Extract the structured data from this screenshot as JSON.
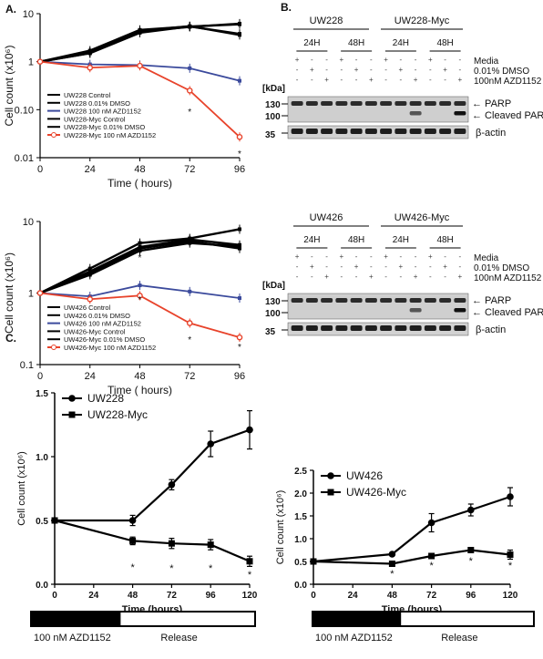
{
  "panels": {
    "a": "A.",
    "b": "B.",
    "c": "C."
  },
  "chart_data": [
    {
      "id": "a_top",
      "type": "line",
      "log_y": true,
      "ylabel": "Cell count (x10⁶)",
      "xlabel": "Time ( hours)",
      "x": [
        0,
        24,
        48,
        72,
        96
      ],
      "xlim": [
        0,
        96
      ],
      "ylim": [
        0.01,
        10
      ],
      "yticks": [
        "0.01",
        "0.10",
        "1",
        "10"
      ],
      "series": [
        {
          "name": "UW228 Control",
          "color": "#000000",
          "values": [
            1,
            1.5,
            4.3,
            5.3,
            6.2
          ]
        },
        {
          "name": "UW228 0.01% DMSO",
          "color": "#000000",
          "values": [
            1,
            1.7,
            4.6,
            5.4,
            3.8
          ]
        },
        {
          "name": "UW228 100 nM AZD1152",
          "color": "#3b4a9c",
          "values": [
            1,
            0.88,
            0.85,
            0.73,
            0.4
          ]
        },
        {
          "name": "UW228-Myc Control",
          "color": "#000000",
          "values": [
            1,
            1.5,
            4.0,
            5.4,
            6.0
          ]
        },
        {
          "name": "UW228-Myc 0.01% DMSO",
          "color": "#000000",
          "values": [
            1,
            1.6,
            4.4,
            5.5,
            3.6
          ]
        },
        {
          "name": "UW228-Myc 100 nM AZD1152",
          "color": "#e8432b",
          "values": [
            1,
            0.75,
            0.82,
            0.25,
            0.027
          ]
        }
      ],
      "annotations": [
        "*",
        "*"
      ]
    },
    {
      "id": "a_bottom",
      "type": "line",
      "log_y": true,
      "ylabel": "Cell count (x10⁶)",
      "xlabel": "Time ( hours)",
      "x": [
        0,
        24,
        48,
        72,
        96
      ],
      "xlim": [
        0,
        96
      ],
      "ylim": [
        0.1,
        10
      ],
      "yticks": [
        "0.1",
        "1",
        "10"
      ],
      "series": [
        {
          "name": "UW426 Control",
          "color": "#000000",
          "values": [
            1,
            2.2,
            5.0,
            5.8,
            7.8
          ]
        },
        {
          "name": "UW426 0.01% DMSO",
          "color": "#000000",
          "values": [
            1,
            2.0,
            4.4,
            5.6,
            4.7
          ]
        },
        {
          "name": "UW426 100 nM AZD1152",
          "color": "#3b4a9c",
          "values": [
            1,
            0.9,
            1.28,
            1.05,
            0.85
          ]
        },
        {
          "name": "UW426-Myc Control",
          "color": "#000000",
          "values": [
            1,
            1.9,
            4.2,
            5.3,
            4.2
          ]
        },
        {
          "name": "UW426-Myc 0.01% DMSO",
          "color": "#000000",
          "values": [
            1,
            1.8,
            3.9,
            5.0,
            4.5
          ]
        },
        {
          "name": "UW426-Myc 100 nM AZD1152",
          "color": "#e8432b",
          "values": [
            1,
            0.82,
            0.92,
            0.38,
            0.24
          ]
        }
      ],
      "annotations": [
        "*",
        "*",
        "*",
        "*"
      ]
    },
    {
      "id": "c_left",
      "type": "line",
      "ylabel": "Cell count (x10⁶)",
      "xlabel": "Time (hours)",
      "x": [
        0,
        48,
        72,
        96,
        120
      ],
      "xticks": [
        "0",
        "24",
        "48",
        "72",
        "96",
        "120"
      ],
      "yticks": [
        "0.0",
        "0.5",
        "1.0",
        "1.5"
      ],
      "ylim": [
        0,
        1.5
      ],
      "series": [
        {
          "name": "UW228",
          "marker": "circle",
          "values": [
            0.5,
            0.5,
            0.78,
            1.1,
            1.21
          ],
          "errors": [
            0,
            0.04,
            0.04,
            0.1,
            0.15
          ]
        },
        {
          "name": "UW228-Myc",
          "marker": "square",
          "values": [
            0.5,
            0.34,
            0.32,
            0.31,
            0.18
          ],
          "errors": [
            0,
            0.03,
            0.04,
            0.04,
            0.04
          ]
        }
      ],
      "annotations": [
        "*",
        "*",
        "*",
        "*"
      ]
    },
    {
      "id": "c_right",
      "type": "line",
      "ylabel": "Cell count (x10⁶)",
      "xlabel": "Time (hours)",
      "x": [
        0,
        48,
        72,
        96,
        120
      ],
      "xticks": [
        "0",
        "24",
        "48",
        "72",
        "96",
        "120"
      ],
      "yticks": [
        "0.0",
        "0.5",
        "1.0",
        "1.5",
        "2.0",
        "2.5"
      ],
      "ylim": [
        0,
        2.5
      ],
      "series": [
        {
          "name": "UW426",
          "marker": "circle",
          "values": [
            0.5,
            0.66,
            1.35,
            1.63,
            1.92
          ],
          "errors": [
            0,
            0.03,
            0.2,
            0.13,
            0.2
          ]
        },
        {
          "name": "UW426-Myc",
          "marker": "square",
          "values": [
            0.5,
            0.45,
            0.62,
            0.75,
            0.65
          ],
          "errors": [
            0,
            0.03,
            0.04,
            0.04,
            0.1
          ]
        }
      ],
      "annotations": [
        "*",
        "*",
        "*",
        "*"
      ]
    }
  ],
  "blots": [
    {
      "cell_lines": [
        "UW228",
        "UW228-Myc"
      ],
      "timepoints": [
        "24H",
        "48H",
        "24H",
        "48H"
      ],
      "rows": [
        {
          "label": "Media",
          "signs": [
            "+",
            "-",
            "-",
            "+",
            "-",
            "-",
            "+",
            "-",
            "-",
            "+",
            "-",
            "-"
          ]
        },
        {
          "label": "0.01% DMSO",
          "signs": [
            "-",
            "+",
            "-",
            "-",
            "+",
            "-",
            "-",
            "+",
            "-",
            "-",
            "+",
            "-"
          ]
        },
        {
          "label": "100nM AZD1152",
          "signs": [
            "-",
            "-",
            "+",
            "-",
            "-",
            "+",
            "-",
            "-",
            "+",
            "-",
            "-",
            "+"
          ]
        }
      ],
      "kda_label": "[kDa]",
      "markers": [
        "130",
        "100",
        "35"
      ],
      "band_labels": [
        "PARP",
        "Cleaved PARP",
        "β-actin"
      ]
    },
    {
      "cell_lines": [
        "UW426",
        "UW426-Myc"
      ],
      "timepoints": [
        "24H",
        "48H",
        "24H",
        "48H"
      ],
      "rows": [
        {
          "label": "Media",
          "signs": [
            "+",
            "-",
            "-",
            "+",
            "-",
            "-",
            "+",
            "-",
            "-",
            "+",
            "-",
            "-"
          ]
        },
        {
          "label": "0.01% DMSO",
          "signs": [
            "-",
            "+",
            "-",
            "-",
            "+",
            "-",
            "-",
            "+",
            "-",
            "-",
            "+",
            "-"
          ]
        },
        {
          "label": "100nM AZD1152",
          "signs": [
            "-",
            "-",
            "+",
            "-",
            "-",
            "+",
            "-",
            "-",
            "+",
            "-",
            "-",
            "+"
          ]
        }
      ],
      "kda_label": "[kDa]",
      "markers": [
        "130",
        "100",
        "35"
      ],
      "band_labels": [
        "PARP",
        "Cleaved PARP",
        "β-actin"
      ]
    }
  ],
  "treatment_bar": {
    "drug": "100 nM AZD1152",
    "release": "Release"
  }
}
